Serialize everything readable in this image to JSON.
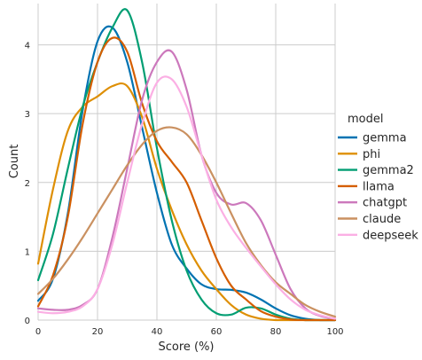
{
  "chart_data": {
    "type": "line",
    "xlabel": "Score (%)",
    "ylabel": "Count",
    "xlim": [
      0,
      100
    ],
    "ylim": [
      0,
      4.6
    ],
    "xticks": [
      0,
      20,
      40,
      60,
      80,
      100
    ],
    "yticks": [
      0,
      1,
      2,
      3,
      4
    ],
    "grid": true,
    "legend": {
      "title": "model",
      "placement": "right"
    },
    "x": [
      0,
      5,
      10,
      15,
      20,
      25,
      30,
      35,
      40,
      45,
      50,
      55,
      60,
      65,
      70,
      75,
      80,
      85,
      90,
      95,
      100
    ],
    "series": [
      {
        "name": "gemma",
        "color": "#0173b2",
        "values": [
          0.28,
          0.6,
          1.55,
          3.05,
          4.05,
          4.25,
          3.75,
          2.8,
          1.85,
          1.1,
          0.75,
          0.52,
          0.45,
          0.44,
          0.4,
          0.3,
          0.17,
          0.07,
          0.02,
          0.0,
          0.0
        ]
      },
      {
        "name": "phi",
        "color": "#de8f05",
        "values": [
          0.82,
          1.9,
          2.75,
          3.1,
          3.25,
          3.4,
          3.4,
          2.95,
          2.2,
          1.6,
          1.1,
          0.72,
          0.45,
          0.22,
          0.08,
          0.02,
          0.0,
          0.0,
          0.0,
          0.0,
          0.0
        ]
      },
      {
        "name": "gemma2",
        "color": "#029e73",
        "values": [
          0.58,
          1.25,
          2.2,
          3.1,
          3.75,
          4.25,
          4.5,
          3.75,
          2.5,
          1.45,
          0.72,
          0.3,
          0.1,
          0.08,
          0.18,
          0.17,
          0.08,
          0.02,
          0.0,
          0.0,
          0.0
        ]
      },
      {
        "name": "llama",
        "color": "#d55e00",
        "values": [
          0.2,
          0.65,
          1.5,
          2.85,
          3.75,
          4.1,
          3.9,
          3.15,
          2.6,
          2.3,
          2.0,
          1.45,
          0.9,
          0.5,
          0.3,
          0.13,
          0.05,
          0.01,
          0.0,
          0.0,
          0.0
        ]
      },
      {
        "name": "chatgpt",
        "color": "#cc78bc",
        "values": [
          0.17,
          0.15,
          0.15,
          0.22,
          0.45,
          1.2,
          2.2,
          3.2,
          3.75,
          3.9,
          3.35,
          2.4,
          1.85,
          1.68,
          1.7,
          1.45,
          0.95,
          0.45,
          0.17,
          0.06,
          0.02
        ]
      },
      {
        "name": "claude",
        "color": "#ca9161",
        "values": [
          0.38,
          0.6,
          0.88,
          1.2,
          1.55,
          1.9,
          2.25,
          2.55,
          2.75,
          2.8,
          2.7,
          2.4,
          2.0,
          1.55,
          1.12,
          0.8,
          0.55,
          0.38,
          0.22,
          0.12,
          0.05
        ]
      },
      {
        "name": "deepseek",
        "color": "#fbafe4",
        "values": [
          0.12,
          0.1,
          0.12,
          0.2,
          0.45,
          1.1,
          2.0,
          2.85,
          3.45,
          3.5,
          3.1,
          2.4,
          1.75,
          1.35,
          1.05,
          0.78,
          0.52,
          0.3,
          0.15,
          0.07,
          0.02
        ]
      }
    ]
  }
}
